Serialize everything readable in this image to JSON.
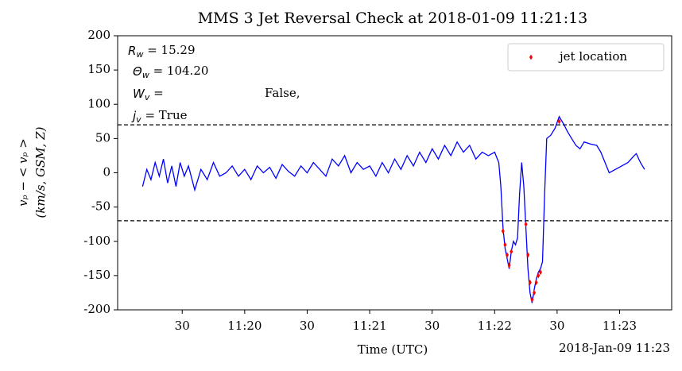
{
  "chart_data": {
    "type": "line",
    "title": "MMS 3 Jet Reversal Check at 2018-01-09 11:21:13",
    "xlabel": "Time (UTC)",
    "x_offset_label": "2018-Jan-09 11:23",
    "ylabel": [
      "vₚ − < vₚ >",
      "(km/s, GSM, Z)"
    ],
    "annotations": [
      {
        "main": "R",
        "sub": "w",
        "rest": " = 15.29"
      },
      {
        "main": "Θ",
        "sub": "w",
        "rest": " = 104.20"
      },
      {
        "main": "W",
        "sub": "v",
        "rest": " =",
        "note": "False,"
      },
      {
        "main": "j",
        "sub": "v",
        "rest": " = True"
      }
    ],
    "thresholds": [
      70,
      -70
    ],
    "legend": "upper right",
    "xlim": [
      "11:18:59",
      "11:23:25"
    ],
    "xticks": [
      {
        "value": "11:19:30",
        "label": "30"
      },
      {
        "value": "11:20:00",
        "label": "11:20"
      },
      {
        "value": "11:20:30",
        "label": "30"
      },
      {
        "value": "11:21:00",
        "label": "11:21"
      },
      {
        "value": "11:21:30",
        "label": "30"
      },
      {
        "value": "11:22:00",
        "label": "11:22"
      },
      {
        "value": "11:22:30",
        "label": "30"
      },
      {
        "value": "11:23:00",
        "label": "11:23"
      }
    ],
    "ylim": [
      -200,
      200
    ],
    "yticks": [
      -200,
      -150,
      -100,
      -50,
      0,
      50,
      100,
      150,
      200
    ],
    "series": [
      {
        "color": "#0000ff",
        "x": [
          "11:19:11",
          "11:19:13",
          "11:19:15",
          "11:19:17",
          "11:19:19",
          "11:19:21",
          "11:19:23",
          "11:19:25",
          "11:19:27",
          "11:19:29",
          "11:19:31",
          "11:19:33",
          "11:19:36",
          "11:19:39",
          "11:19:42",
          "11:19:45",
          "11:19:48",
          "11:19:51",
          "11:19:54",
          "11:19:57",
          "11:20:00",
          "11:20:03",
          "11:20:06",
          "11:20:09",
          "11:20:12",
          "11:20:15",
          "11:20:18",
          "11:20:21",
          "11:20:24",
          "11:20:27",
          "11:20:30",
          "11:20:33",
          "11:20:36",
          "11:20:39",
          "11:20:42",
          "11:20:45",
          "11:20:48",
          "11:20:51",
          "11:20:54",
          "11:20:57",
          "11:21:00",
          "11:21:03",
          "11:21:06",
          "11:21:09",
          "11:21:12",
          "11:21:15",
          "11:21:18",
          "11:21:21",
          "11:21:24",
          "11:21:27",
          "11:21:30",
          "11:21:33",
          "11:21:36",
          "11:21:39",
          "11:21:42",
          "11:21:45",
          "11:21:48",
          "11:21:51",
          "11:21:54",
          "11:21:57",
          "11:22:00",
          "11:22:02",
          "11:22:03",
          "11:22:04",
          "11:22:05",
          "11:22:06",
          "11:22:07",
          "11:22:08",
          "11:22:09",
          "11:22:10",
          "11:22:11",
          "11:22:12",
          "11:22:13",
          "11:22:14",
          "11:22:15",
          "11:22:16",
          "11:22:17",
          "11:22:18",
          "11:22:19",
          "11:22:20",
          "11:22:21",
          "11:22:22",
          "11:22:23",
          "11:22:24",
          "11:22:25",
          "11:22:27",
          "11:22:29",
          "11:22:31",
          "11:22:33",
          "11:22:35",
          "11:22:37",
          "11:22:39",
          "11:22:41",
          "11:22:43",
          "11:22:46",
          "11:22:49",
          "11:22:51",
          "11:22:53",
          "11:22:55",
          "11:22:58",
          "11:23:01",
          "11:23:04",
          "11:23:07",
          "11:23:08",
          "11:23:10",
          "11:23:12"
        ],
        "values": [
          -20,
          5,
          -10,
          15,
          -5,
          20,
          -15,
          10,
          -20,
          15,
          -5,
          10,
          -25,
          5,
          -10,
          15,
          -5,
          0,
          10,
          -5,
          5,
          -10,
          10,
          0,
          8,
          -8,
          12,
          2,
          -5,
          10,
          0,
          15,
          5,
          -5,
          20,
          10,
          25,
          0,
          15,
          5,
          10,
          -5,
          15,
          0,
          20,
          5,
          25,
          10,
          30,
          15,
          35,
          20,
          40,
          25,
          45,
          30,
          40,
          20,
          30,
          25,
          30,
          15,
          -20,
          -80,
          -110,
          -125,
          -140,
          -115,
          -100,
          -105,
          -95,
          -30,
          15,
          -20,
          -80,
          -140,
          -175,
          -190,
          -170,
          -155,
          -145,
          -140,
          -130,
          -30,
          50,
          55,
          65,
          82,
          72,
          60,
          50,
          40,
          35,
          45,
          42,
          40,
          30,
          15,
          0,
          5,
          10,
          15,
          25,
          28,
          15,
          5
        ]
      },
      {
        "name": "jet location",
        "color": "#ff0000",
        "marker": "diamond",
        "x": [
          "11:22:04",
          "11:22:05",
          "11:22:06",
          "11:22:07",
          "11:22:08",
          "11:22:15",
          "11:22:16",
          "11:22:17",
          "11:22:18",
          "11:22:19",
          "11:22:20",
          "11:22:21",
          "11:22:22",
          "11:22:31"
        ],
        "values": [
          -85,
          -105,
          -120,
          -135,
          -115,
          -75,
          -120,
          -160,
          -185,
          -175,
          -160,
          -150,
          -145,
          75
        ]
      }
    ]
  }
}
